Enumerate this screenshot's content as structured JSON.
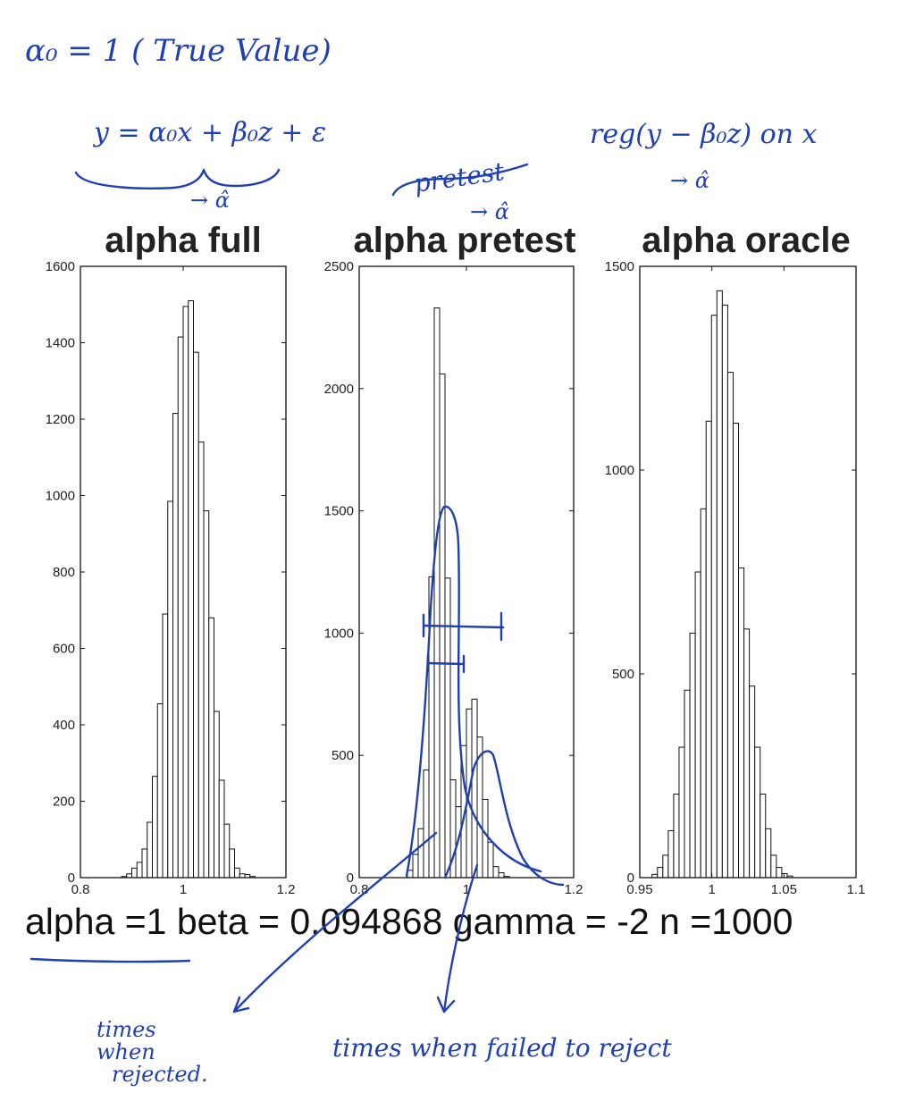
{
  "annotations": {
    "true_value": "α₀ = 1 ( True Value)",
    "model_eq": "y = α₀x + β₀z + ε",
    "full_arrow": "→ α̂",
    "pretest_label": "pretest",
    "pretest_arrow": "→ α̂",
    "oracle_eq": "reg(y − β₀z) on x",
    "oracle_arrow": "→ α̂",
    "rejected_note_1": "times",
    "rejected_note_2": "when",
    "rejected_note_3": "rejected.",
    "failed_note": "times when failed to reject"
  },
  "caption": "alpha =1 beta = 0.094868 gamma = -2 n =1000",
  "colors": {
    "ink": "#1f3fb3",
    "bars": "#ffffff",
    "axes": "#111111"
  },
  "chart_data": [
    {
      "type": "bar",
      "title": "alpha full",
      "xlim": [
        0.8,
        1.2
      ],
      "ylim": [
        0,
        1600
      ],
      "xticks": [
        "0.8",
        "1",
        "1.2"
      ],
      "yticks": [
        "0",
        "200",
        "400",
        "600",
        "800",
        "1000",
        "1200",
        "1400",
        "1600"
      ],
      "bin_start": 0.88,
      "bin_width": 0.01,
      "values": [
        3,
        10,
        25,
        40,
        75,
        145,
        265,
        455,
        690,
        985,
        1215,
        1415,
        1495,
        1510,
        1375,
        1140,
        960,
        680,
        435,
        255,
        140,
        75,
        25,
        10,
        8,
        3,
        0
      ]
    },
    {
      "type": "bar",
      "title": "alpha pretest",
      "xlim": [
        0.8,
        1.2
      ],
      "ylim": [
        0,
        2500
      ],
      "xticks": [
        "0.8",
        "1",
        "1.2"
      ],
      "yticks": [
        "0",
        "500",
        "1000",
        "1500",
        "2000",
        "2500"
      ],
      "bin_start": 0.89,
      "bin_width": 0.01,
      "values": [
        30,
        95,
        200,
        440,
        1230,
        2330,
        2060,
        1225,
        400,
        290,
        540,
        690,
        730,
        575,
        320,
        145,
        45,
        20,
        5
      ]
    },
    {
      "type": "bar",
      "title": "alpha oracle",
      "xlim": [
        0.95,
        1.1
      ],
      "ylim": [
        0,
        1500
      ],
      "xticks": [
        "0.95",
        "1",
        "1.05",
        "1.1"
      ],
      "yticks": [
        "0",
        "500",
        "1000",
        "1500"
      ],
      "bin_start": 0.9585,
      "bin_width": 0.00375,
      "values": [
        8,
        25,
        55,
        115,
        205,
        320,
        460,
        600,
        750,
        905,
        1120,
        1380,
        1440,
        1405,
        1240,
        1115,
        760,
        610,
        470,
        320,
        205,
        120,
        55,
        25,
        10,
        4
      ]
    }
  ]
}
